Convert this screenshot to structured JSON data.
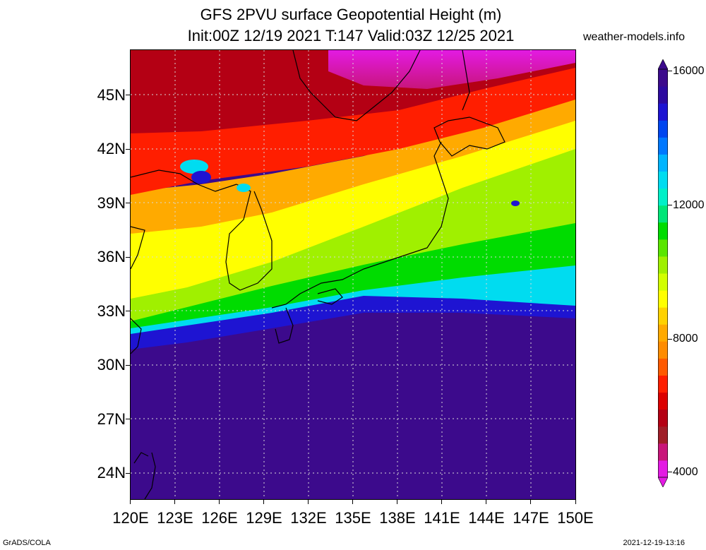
{
  "title": {
    "line1": "GFS 2PVU surface Geopotential Height (m)",
    "line2": "Init:00Z 12/19 2021 T:147 Valid:03Z 12/25 2021"
  },
  "source": "weather-models.info",
  "footer": {
    "left": "GrADS/COLA",
    "right": "2021-12-19-13:16"
  },
  "map": {
    "lat_labels": [
      "45N",
      "42N",
      "39N",
      "36N",
      "33N",
      "30N",
      "27N",
      "24N"
    ],
    "lon_labels": [
      "120E",
      "123E",
      "126E",
      "129E",
      "132E",
      "135E",
      "138E",
      "141E",
      "144E",
      "147E",
      "150E"
    ],
    "lon_range": [
      120,
      150
    ],
    "lat_range": [
      22.5,
      47.5
    ]
  },
  "colorbar": {
    "labels": [
      "16000",
      "12000",
      "8000",
      "4000"
    ],
    "colors": [
      "#e31ae3",
      "#c8157a",
      "#a01e28",
      "#b40014",
      "#dc0000",
      "#ff1e00",
      "#ff5a00",
      "#ff8c00",
      "#ffaa00",
      "#ffd200",
      "#ffff00",
      "#d2ff00",
      "#a0f000",
      "#5ae600",
      "#00dc00",
      "#00e678",
      "#00f0c8",
      "#00dcf0",
      "#00b4ff",
      "#0078ff",
      "#0046f0",
      "#1e14d2",
      "#2d0aa0",
      "#3c0a8c"
    ]
  }
}
